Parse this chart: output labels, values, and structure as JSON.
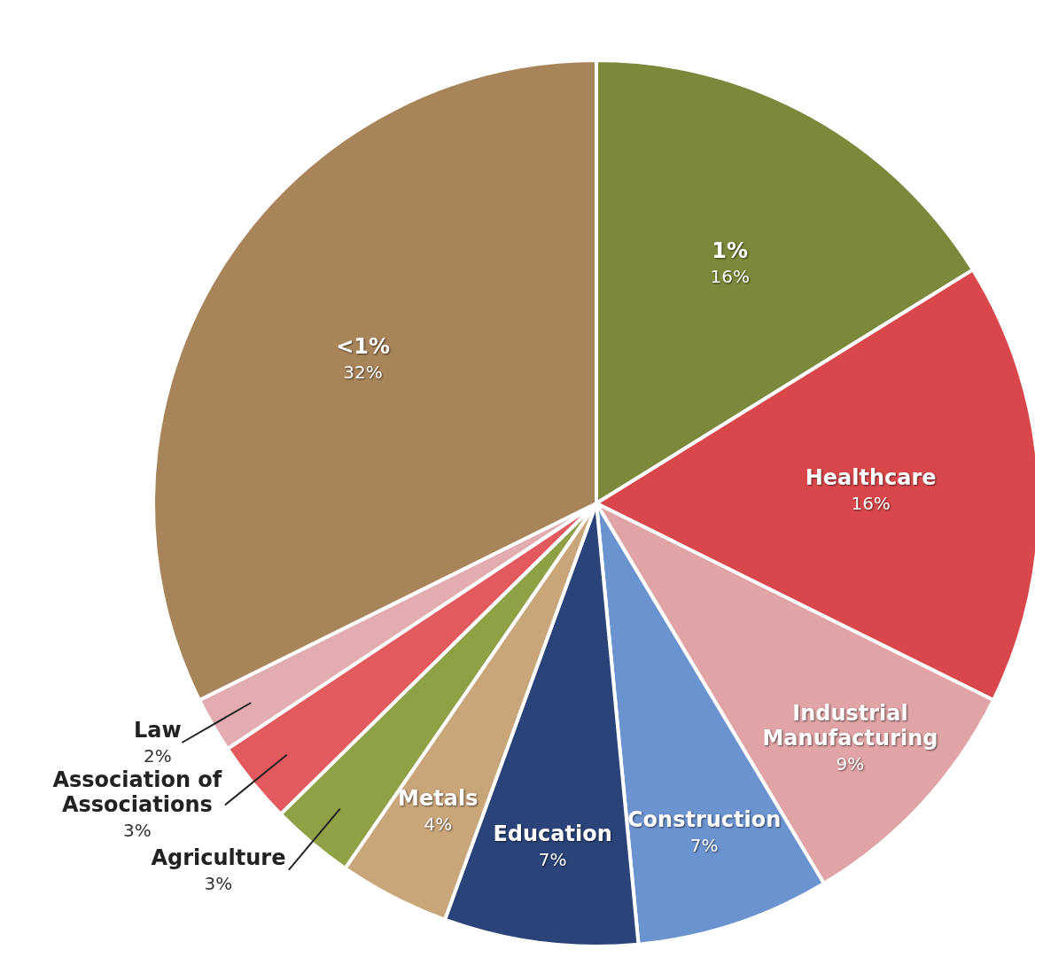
{
  "chart_data": {
    "type": "pie",
    "categories": [
      "1%",
      "Healthcare",
      "Industrial Manufacturing",
      "Construction",
      "Education",
      "Metals",
      "Agriculture",
      "Association of Associations",
      "Law",
      "<1%"
    ],
    "values": [
      16,
      16,
      9,
      7,
      7,
      4,
      3,
      3,
      2,
      32
    ],
    "value_labels": [
      "16%",
      "16%",
      "9%",
      "7%",
      "7%",
      "4%",
      "3%",
      "3%",
      "2%",
      "32%"
    ],
    "colors": [
      "#7a8a3a",
      "#d9474a",
      "#e0a3a6",
      "#6b93d0",
      "#2a4479",
      "#c9a57a",
      "#8fa145",
      "#e35a5e",
      "#e2acb0",
      "#a8845a"
    ]
  }
}
